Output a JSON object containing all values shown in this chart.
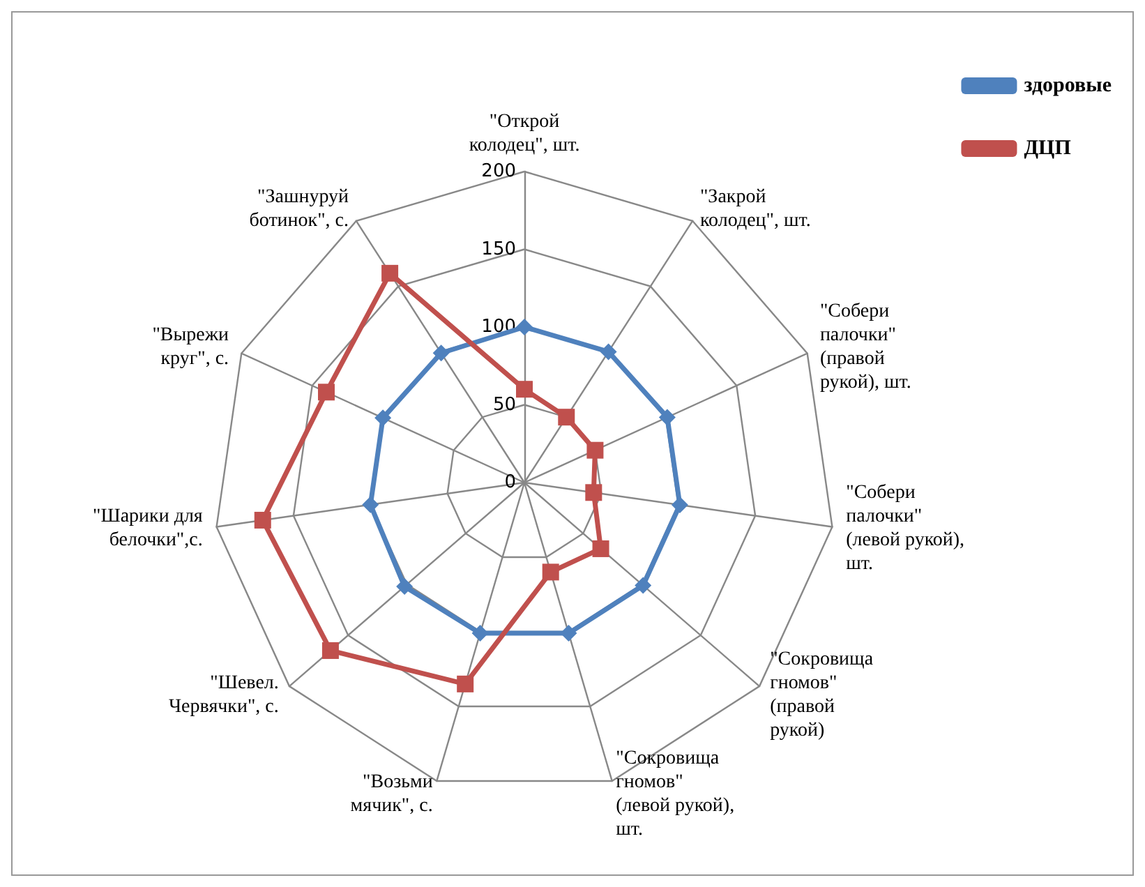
{
  "chart_data": {
    "type": "radar",
    "categories": [
      "\"Открой\nколодец\", шт.",
      "\"Закрой\nколодец\", шт.",
      "\"Собери\nпалочки\"\n(правой\nрукой), шт.",
      "\"Собери\nпалочки\"\n(левой рукой),\nшт.",
      "\"Сокровища\nгномов\"\n(правой\nрукой)",
      "\"Сокровища\nгномов\"\n(левой рукой),\nшт.",
      "\"Возьми\nмячик\", с.",
      "\"Шевел.\nЧервячки\", с.",
      "\"Шарики для\nбелочки\",с.",
      "\"Вырежи\nкруг\", с.",
      "\"Зашнуруй\nботинок\", с."
    ],
    "series": [
      {
        "name": "здоровые",
        "color": "#4f81bd",
        "marker": "diamond",
        "values": [
          100,
          100,
          101,
          101,
          101,
          101,
          101,
          102,
          100,
          100,
          99
        ]
      },
      {
        "name": "ДЦП",
        "color": "#c0504d",
        "marker": "square",
        "values": [
          60,
          50,
          50,
          45,
          65,
          60,
          135,
          165,
          170,
          140,
          160
        ]
      }
    ],
    "ylim": [
      0,
      200
    ],
    "yticks": [
      0,
      50,
      100,
      150,
      200
    ],
    "legend": "top right",
    "line_style": "solid"
  }
}
